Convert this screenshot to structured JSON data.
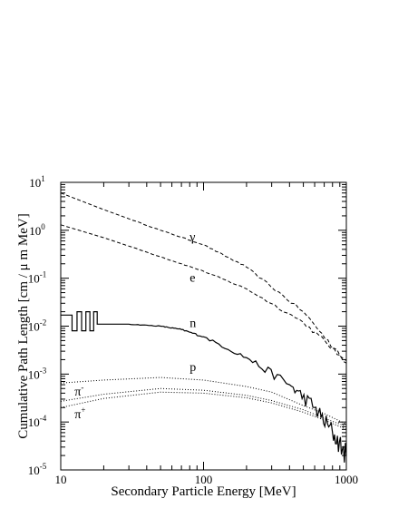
{
  "chart_data": {
    "type": "line",
    "xlabel": "Secondary Particle Energy [MeV]",
    "ylabel": "Cumulative Path Length [cm / μ m MeV]",
    "x_scale": "log",
    "y_scale": "log",
    "xlim": [
      10,
      1000
    ],
    "ylim": [
      1e-05,
      10
    ],
    "grid": false,
    "x_ticks": [
      {
        "value": 10,
        "label": "10"
      },
      {
        "value": 100,
        "label": "100"
      },
      {
        "value": 1000,
        "label": "1000"
      }
    ],
    "y_ticks": [
      {
        "value": 1e-05,
        "base": "10",
        "exp": "-5"
      },
      {
        "value": 0.0001,
        "base": "10",
        "exp": "-4"
      },
      {
        "value": 0.001,
        "base": "10",
        "exp": "-3"
      },
      {
        "value": 0.01,
        "base": "10",
        "exp": "-2"
      },
      {
        "value": 0.1,
        "base": "10",
        "exp": "-1"
      },
      {
        "value": 1,
        "base": "10",
        "exp": "0"
      },
      {
        "value": 10,
        "base": "10",
        "exp": "1"
      }
    ],
    "series": [
      {
        "name": "γ",
        "style": "dashed",
        "noisy": true,
        "label_at": [
          80,
          0.6
        ],
        "points": [
          [
            10,
            6
          ],
          [
            20,
            2.7
          ],
          [
            50,
            1.0
          ],
          [
            100,
            0.5
          ],
          [
            200,
            0.17
          ],
          [
            500,
            0.02
          ],
          [
            1000,
            0.0017
          ]
        ]
      },
      {
        "name": "e",
        "style": "dashed",
        "noisy": true,
        "label_at": [
          80,
          0.085
        ],
        "points": [
          [
            10,
            1.3
          ],
          [
            20,
            0.7
          ],
          [
            50,
            0.28
          ],
          [
            100,
            0.14
          ],
          [
            200,
            0.06
          ],
          [
            500,
            0.012
          ],
          [
            1000,
            0.0019
          ]
        ]
      },
      {
        "name": "n",
        "style": "solid",
        "noisy": true,
        "label_at": [
          80,
          0.0095
        ],
        "points": [
          [
            10,
            0.017
          ],
          [
            12,
            0.017
          ],
          [
            12,
            0.008
          ],
          [
            13,
            0.008
          ],
          [
            13,
            0.02
          ],
          [
            14,
            0.02
          ],
          [
            14,
            0.008
          ],
          [
            15,
            0.008
          ],
          [
            15,
            0.02
          ],
          [
            16,
            0.02
          ],
          [
            16,
            0.008
          ],
          [
            17,
            0.008
          ],
          [
            17,
            0.02
          ],
          [
            18,
            0.02
          ],
          [
            18,
            0.011
          ],
          [
            20,
            0.011
          ],
          [
            30,
            0.011
          ],
          [
            50,
            0.01
          ],
          [
            70,
            0.0085
          ],
          [
            100,
            0.006
          ],
          [
            200,
            0.0022
          ],
          [
            400,
            0.0006
          ],
          [
            600,
            0.0002
          ],
          [
            800,
            6e-05
          ],
          [
            1000,
            2e-05
          ]
        ]
      },
      {
        "name": "p",
        "style": "dotted",
        "noisy": false,
        "label_at": [
          80,
          0.00115
        ],
        "points": [
          [
            10,
            0.00065
          ],
          [
            20,
            0.00075
          ],
          [
            50,
            0.00085
          ],
          [
            100,
            0.00075
          ],
          [
            200,
            0.00055
          ],
          [
            300,
            0.00042
          ],
          [
            500,
            0.00022
          ],
          [
            700,
            0.00015
          ],
          [
            1000,
            9e-05
          ]
        ]
      },
      {
        "name": "π",
        "sup": "-",
        "style": "dotted",
        "noisy": false,
        "label_at": [
          12.5,
          0.00036
        ],
        "points": [
          [
            10,
            0.00027
          ],
          [
            20,
            0.00038
          ],
          [
            50,
            0.0005
          ],
          [
            100,
            0.00046
          ],
          [
            200,
            0.00036
          ],
          [
            300,
            0.00028
          ],
          [
            500,
            0.00018
          ],
          [
            700,
            0.00012
          ],
          [
            1000,
            8e-05
          ]
        ]
      },
      {
        "name": "π",
        "sup": "+",
        "style": "dotted",
        "noisy": false,
        "label_at": [
          12.5,
          0.00012
        ],
        "points": [
          [
            10,
            0.0002
          ],
          [
            20,
            0.00031
          ],
          [
            50,
            0.00042
          ],
          [
            100,
            0.0004
          ],
          [
            200,
            0.00032
          ],
          [
            300,
            0.00025
          ],
          [
            500,
            0.00016
          ],
          [
            700,
            0.00011
          ],
          [
            1000,
            7e-05
          ]
        ]
      }
    ]
  }
}
